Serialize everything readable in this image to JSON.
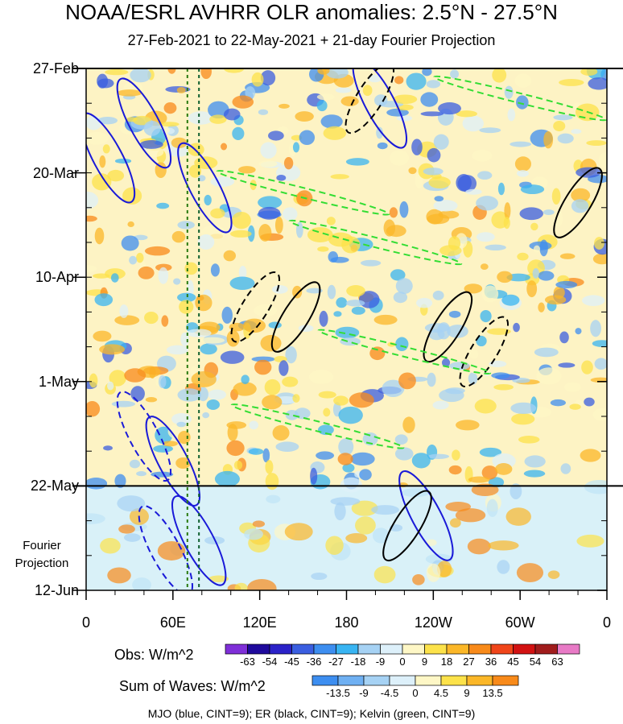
{
  "title": "NOAA/ESRL AVHRR OLR anomalies: 2.5°N - 27.5°N",
  "subtitle": "27-Feb-2021 to 22-May-2021 + 21-day Fourier Projection",
  "projection_label_line1": "Fourier",
  "projection_label_line2": "Projection",
  "obs_colorbar": {
    "label": "Obs: W/m^2",
    "ticks": [
      "-63",
      "-54",
      "-45",
      "-36",
      "-27",
      "-18",
      "-9",
      "0",
      "9",
      "18",
      "27",
      "36",
      "45",
      "54",
      "63"
    ],
    "colors": [
      "#7f2fd8",
      "#1f0a9c",
      "#2b22c8",
      "#3a5ee0",
      "#3d8ef0",
      "#38b4f2",
      "#a6d2f4",
      "#ddf0fa",
      "#fef7c6",
      "#fce24a",
      "#fbb728",
      "#f88a1a",
      "#f0451a",
      "#d21212",
      "#a01c1c",
      "#e87ac6"
    ]
  },
  "waves_colorbar": {
    "label": "Sum of Waves: W/m^2",
    "ticks": [
      "-13.5",
      "-9",
      "-4.5",
      "0",
      "4.5",
      "9",
      "13.5"
    ],
    "colors": [
      "#3d8ef0",
      "#6fb0f2",
      "#a6d2f4",
      "#ddf0fa",
      "#fef7c6",
      "#fce24a",
      "#fbb728",
      "#f88a1a"
    ]
  },
  "footer": "MJO (blue, CINT=9); ER (black, CINT=9); Kelvin (green, CINT=9)",
  "chart_data": {
    "type": "heatmap",
    "x_axis": {
      "label": "",
      "range_deg_east": [
        0,
        360
      ],
      "ticks": [
        {
          "deg": 0,
          "label": "0"
        },
        {
          "deg": 60,
          "label": "60E"
        },
        {
          "deg": 120,
          "label": "120E"
        },
        {
          "deg": 180,
          "label": "180"
        },
        {
          "deg": 240,
          "label": "120W"
        },
        {
          "deg": 300,
          "label": "60W"
        },
        {
          "deg": 360,
          "label": "0"
        }
      ]
    },
    "y_axis": {
      "label": "",
      "range": [
        "2021-02-27",
        "2021-06-12"
      ],
      "ticks": [
        {
          "date": "2021-02-27",
          "label": "27-Feb"
        },
        {
          "date": "2021-03-20",
          "label": "20-Mar"
        },
        {
          "date": "2021-04-10",
          "label": "10-Apr"
        },
        {
          "date": "2021-05-01",
          "label": "1-May"
        },
        {
          "date": "2021-05-22",
          "label": "22-May"
        },
        {
          "date": "2021-06-12",
          "label": "12-Jun"
        }
      ],
      "observation_end": "2021-05-22"
    },
    "reference_lines_deg_east": [
      70,
      78
    ],
    "wave_contours": [
      {
        "wave": "MJO",
        "color": "#1a1ad8",
        "lon": 40,
        "date": "2021-03-10",
        "sign": "neg"
      },
      {
        "wave": "MJO",
        "color": "#1a1ad8",
        "lon": 15,
        "date": "2021-03-17",
        "sign": "neg"
      },
      {
        "wave": "MJO",
        "color": "#1a1ad8",
        "lon": 82,
        "date": "2021-03-23",
        "sign": "neg"
      },
      {
        "wave": "MJO",
        "color": "#1a1ad8",
        "lon": 60,
        "date": "2021-05-17",
        "sign": "neg"
      },
      {
        "wave": "MJO",
        "color": "#1a1ad8",
        "lon": 78,
        "date": "2021-06-02",
        "sign": "neg"
      },
      {
        "wave": "MJO",
        "color": "#1a1ad8",
        "lon": 40,
        "date": "2021-05-12",
        "sign": "pos"
      },
      {
        "wave": "MJO",
        "color": "#1a1ad8",
        "lon": 55,
        "date": "2021-06-04",
        "sign": "pos"
      },
      {
        "wave": "MJO",
        "color": "#1a1ad8",
        "lon": 203,
        "date": "2021-03-06",
        "sign": "neg"
      },
      {
        "wave": "MJO",
        "color": "#1a1ad8",
        "lon": 235,
        "date": "2021-05-28",
        "sign": "neg"
      },
      {
        "wave": "ER",
        "color": "#000000",
        "lon": 145,
        "date": "2021-04-18",
        "sign": "neg"
      },
      {
        "wave": "ER",
        "color": "#000000",
        "lon": 117,
        "date": "2021-04-16",
        "sign": "pos"
      },
      {
        "wave": "ER",
        "color": "#000000",
        "lon": 250,
        "date": "2021-04-20",
        "sign": "neg"
      },
      {
        "wave": "ER",
        "color": "#000000",
        "lon": 275,
        "date": "2021-04-25",
        "sign": "pos"
      },
      {
        "wave": "ER",
        "color": "#000000",
        "lon": 222,
        "date": "2021-05-30",
        "sign": "neg"
      },
      {
        "wave": "ER",
        "color": "#000000",
        "lon": 196,
        "date": "2021-03-05",
        "sign": "pos"
      },
      {
        "wave": "ER",
        "color": "#000000",
        "lon": 340,
        "date": "2021-03-26",
        "sign": "neg"
      },
      {
        "wave": "Kelvin",
        "color": "#33dd33",
        "lon": 150,
        "date": "2021-03-24",
        "sign": "pos"
      },
      {
        "wave": "Kelvin",
        "color": "#33dd33",
        "lon": 200,
        "date": "2021-04-03",
        "sign": "pos"
      },
      {
        "wave": "Kelvin",
        "color": "#33dd33",
        "lon": 220,
        "date": "2021-04-25",
        "sign": "pos"
      },
      {
        "wave": "Kelvin",
        "color": "#33dd33",
        "lon": 160,
        "date": "2021-05-10",
        "sign": "pos"
      },
      {
        "wave": "Kelvin",
        "color": "#33dd33",
        "lon": 300,
        "date": "2021-03-05",
        "sign": "pos"
      }
    ]
  }
}
